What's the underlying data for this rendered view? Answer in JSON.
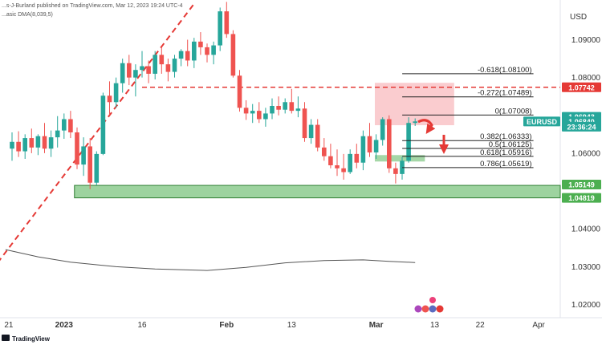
{
  "header": {
    "published_by": "...s-J-Burland published on TradingView.com, Mar 12, 2023 19:24 UTC-4",
    "indicator": "...asic DMA(8,039,5)",
    "footer_brand": "TradingView"
  },
  "colors": {
    "up": "#26a69a",
    "down": "#ef5350",
    "zone_green": "#4caf50",
    "zone_red": "#f5a3a8",
    "dma": "#555555",
    "red_line": "#e53935",
    "price_badge": "#26a69a"
  },
  "chart_data": {
    "type": "candlestick",
    "symbol": "EURUSD",
    "currency": "USD",
    "ylim": [
      1.0165,
      1.1005
    ],
    "y_ticks": [
      1.02,
      1.03,
      1.04,
      1.06,
      1.08,
      1.09
    ],
    "y_tick_labels": [
      "1.02000",
      "1.03000",
      "1.04000",
      "1.06000",
      "1.08000",
      "1.09000"
    ],
    "x_tick_labels": [
      {
        "label": "21",
        "bar": -0.5
      },
      {
        "label": "2023",
        "bar": 8
      },
      {
        "label": "16",
        "bar": 20
      },
      {
        "label": "Feb",
        "bar": 33
      },
      {
        "label": "13",
        "bar": 43
      },
      {
        "label": "Mar",
        "bar": 56
      },
      {
        "label": "13",
        "bar": 65
      },
      {
        "label": "22",
        "bar": 72
      },
      {
        "label": "Apr",
        "bar": 81
      }
    ],
    "candles": [
      [
        1.0612,
        1.0655,
        1.058,
        1.063
      ],
      [
        1.063,
        1.0658,
        1.059,
        1.0605
      ],
      [
        1.0605,
        1.065,
        1.0585,
        1.064
      ],
      [
        1.064,
        1.0665,
        1.06,
        1.0615
      ],
      [
        1.0615,
        1.065,
        1.0595,
        1.0645
      ],
      [
        1.0645,
        1.068,
        1.06,
        1.0612
      ],
      [
        1.0612,
        1.066,
        1.059,
        1.0642
      ],
      [
        1.0642,
        1.0698,
        1.0615,
        1.066
      ],
      [
        1.066,
        1.0705,
        1.0638,
        1.069
      ],
      [
        1.069,
        1.0712,
        1.064,
        1.0655
      ],
      [
        1.0655,
        1.0668,
        1.0558,
        1.057
      ],
      [
        1.057,
        1.0642,
        1.054,
        1.0618
      ],
      [
        1.0618,
        1.064,
        1.0505,
        1.0522
      ],
      [
        1.0522,
        1.0605,
        1.0515,
        1.0598
      ],
      [
        1.0598,
        1.076,
        1.0595,
        1.0752
      ],
      [
        1.0752,
        1.079,
        1.07,
        1.0735
      ],
      [
        1.0735,
        1.08,
        1.072,
        1.0785
      ],
      [
        1.0785,
        1.085,
        1.076,
        1.0838
      ],
      [
        1.0838,
        1.086,
        1.078,
        1.08
      ],
      [
        1.08,
        1.0835,
        1.075,
        1.082
      ],
      [
        1.082,
        1.087,
        1.08,
        1.083
      ],
      [
        1.083,
        1.0845,
        1.0785,
        1.081
      ],
      [
        1.081,
        1.087,
        1.0795,
        1.086
      ],
      [
        1.086,
        1.088,
        1.081,
        1.0835
      ],
      [
        1.0835,
        1.085,
        1.079,
        1.0815
      ],
      [
        1.0815,
        1.086,
        1.08,
        1.085
      ],
      [
        1.085,
        1.0875,
        1.083,
        1.087
      ],
      [
        1.087,
        1.09,
        1.083,
        1.0845
      ],
      [
        1.0845,
        1.0905,
        1.0825,
        1.0895
      ],
      [
        1.0895,
        1.092,
        1.086,
        1.088
      ],
      [
        1.088,
        1.089,
        1.084,
        1.086
      ],
      [
        1.086,
        1.0895,
        1.0835,
        1.0885
      ],
      [
        1.0885,
        1.0985,
        1.087,
        1.0975
      ],
      [
        1.0975,
        1.1,
        1.0905,
        1.0915
      ],
      [
        1.0915,
        1.0925,
        1.08,
        1.0805
      ],
      [
        1.0805,
        1.082,
        1.071,
        1.072
      ],
      [
        1.072,
        1.074,
        1.0688,
        1.0705
      ],
      [
        1.0705,
        1.073,
        1.068,
        1.0712
      ],
      [
        1.0712,
        1.0735,
        1.068,
        1.069
      ],
      [
        1.069,
        1.072,
        1.067,
        1.0705
      ],
      [
        1.0705,
        1.0745,
        1.069,
        1.0725
      ],
      [
        1.0725,
        1.075,
        1.07,
        1.0715
      ],
      [
        1.0715,
        1.0745,
        1.0705,
        1.0735
      ],
      [
        1.0735,
        1.077,
        1.0705,
        1.0712
      ],
      [
        1.0712,
        1.075,
        1.0695,
        1.0718
      ],
      [
        1.0718,
        1.0735,
        1.063,
        1.064
      ],
      [
        1.064,
        1.069,
        1.0625,
        1.0675
      ],
      [
        1.0675,
        1.069,
        1.0605,
        1.0615
      ],
      [
        1.0615,
        1.064,
        1.058,
        1.0592
      ],
      [
        1.0592,
        1.0625,
        1.056,
        1.0568
      ],
      [
        1.0568,
        1.061,
        1.054,
        1.056
      ],
      [
        1.056,
        1.0598,
        1.053,
        1.055
      ],
      [
        1.055,
        1.061,
        1.0545,
        1.0598
      ],
      [
        1.0598,
        1.0625,
        1.056,
        1.0575
      ],
      [
        1.0575,
        1.066,
        1.0555,
        1.0645
      ],
      [
        1.0645,
        1.068,
        1.059,
        1.0602
      ],
      [
        1.0602,
        1.065,
        1.0585,
        1.0635
      ],
      [
        1.0635,
        1.0695,
        1.062,
        1.069
      ],
      [
        1.069,
        1.07,
        1.0548,
        1.056
      ],
      [
        1.056,
        1.0575,
        1.052,
        1.0545
      ],
      [
        1.0545,
        1.059,
        1.053,
        1.058
      ],
      [
        1.058,
        1.0695,
        1.0575,
        1.068
      ],
      [
        1.068,
        1.0692,
        1.0672,
        1.0684
      ]
    ],
    "dma_values": [
      [
        -1,
        1.0345
      ],
      [
        4,
        1.0326
      ],
      [
        9,
        1.0312
      ],
      [
        16,
        1.03
      ],
      [
        22,
        1.0294
      ],
      [
        30,
        1.029
      ],
      [
        36,
        1.0298
      ],
      [
        42,
        1.031
      ],
      [
        48,
        1.0316
      ],
      [
        54,
        1.0318
      ],
      [
        58,
        1.0314
      ],
      [
        62,
        1.0311
      ]
    ],
    "trendline": {
      "from": [
        -4,
        1.027
      ],
      "to": [
        28,
        1.0995
      ]
    },
    "resistance_line": {
      "value": 1.07742,
      "from_bar": 20
    },
    "support_zone": {
      "from_bar": 9.6,
      "y_range": [
        1.04819,
        1.05149
      ]
    },
    "red_zone": {
      "from_bar": 55.8,
      "to_bar": 68,
      "y_range": [
        1.0674,
        1.0786
      ]
    },
    "small_green_zone": {
      "from_bar": 55.8,
      "to_bar": 63.5,
      "y_range": [
        1.0578,
        1.0595
      ]
    },
    "fib_levels": [
      {
        "label": "-0.618(1.08100)",
        "value": 1.081
      },
      {
        "label": "-0.272(1.07489)",
        "value": 1.07489
      },
      {
        "label": "0(1.07008)",
        "value": 1.07008
      },
      {
        "label": "0.382(1.06333)",
        "value": 1.06333
      },
      {
        "label": "0.5(1.06125)",
        "value": 1.06125
      },
      {
        "label": "0.618(1.05916)",
        "value": 1.05916
      },
      {
        "label": "0.786(1.05619)",
        "value": 1.05619
      }
    ],
    "fib_x_from_bar": 61,
    "fib_x_to_bar": 66,
    "price_badges": [
      {
        "label": "1.07742",
        "value": 1.07742,
        "color": "#e53935"
      },
      {
        "label": "1.06943",
        "value": 1.0696,
        "color": "#26a69a"
      },
      {
        "label": "EURUSD",
        "value": 1.0684,
        "color": "#26a69a",
        "text_color": "#ffffff"
      },
      {
        "label": "1.06840",
        "value": 1.0684,
        "color": "#26a69a"
      },
      {
        "label": "23:36:24",
        "value": 1.067,
        "color": "#26a69a"
      },
      {
        "label": "1.05149",
        "value": 1.0517,
        "color": "#4caf50"
      },
      {
        "label": "1.04819",
        "value": 1.04819,
        "color": "#4caf50"
      }
    ]
  }
}
